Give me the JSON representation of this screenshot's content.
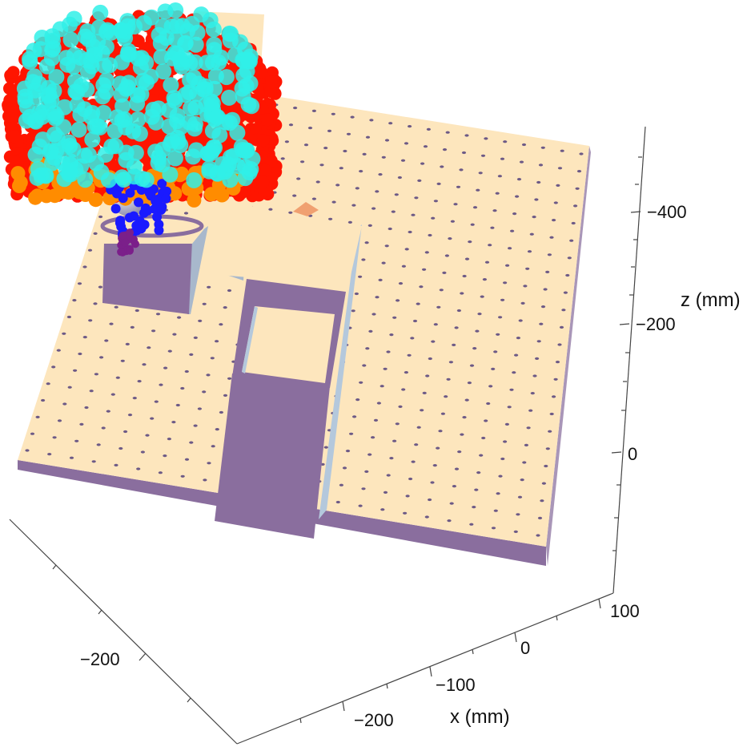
{
  "chart_data": {
    "type": "scatter",
    "subtype": "3d-scene",
    "title": "",
    "xlabel": "x (mm)",
    "ylabel": "",
    "zlabel": "z (mm)",
    "x_ticks": [
      "100",
      "0",
      "−100",
      "−200"
    ],
    "y_ticks": [
      "−200"
    ],
    "z_ticks": [
      "−400",
      "−200",
      "0"
    ],
    "grid": false,
    "legend": "none",
    "series": [
      {
        "color": "#ff1500"
      },
      {
        "color": "#30f0e8"
      },
      {
        "color": "#ff8c00"
      },
      {
        "color": "#1a1aff"
      },
      {
        "color": "#7b1f8a"
      }
    ],
    "colors": {
      "table_top": "#fde6bd",
      "table_side": "#8a6e9e",
      "hole": "#6d5a86"
    }
  }
}
